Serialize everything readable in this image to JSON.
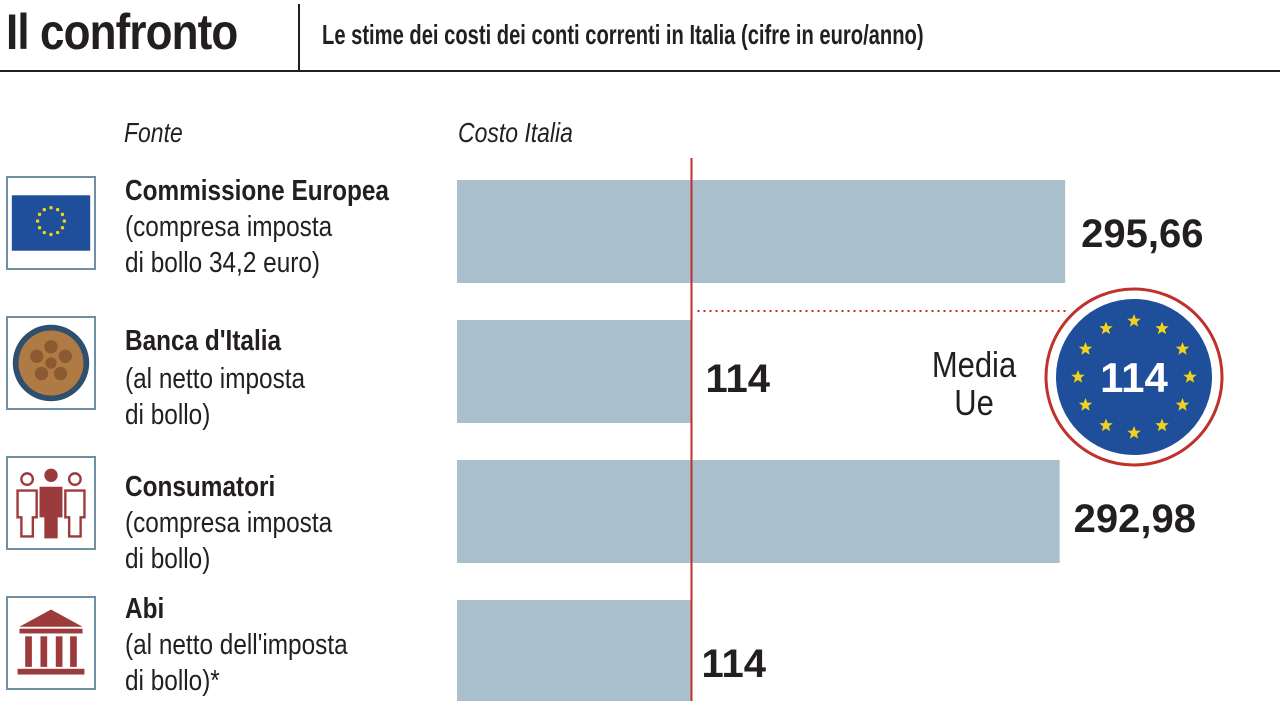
{
  "header": {
    "title": "Il confronto",
    "subtitle": "Le stime dei costi dei conti correnti in Italia (cifre in euro/anno)"
  },
  "columns": {
    "source": "Fonte",
    "cost": "Costo Italia"
  },
  "sources": [
    {
      "name": "Commissione Europea",
      "note_lines": [
        "(compresa imposta",
        "di bollo 34,2 euro)"
      ],
      "icon": "eu-flag-icon"
    },
    {
      "name": "Banca d'Italia",
      "note_lines": [
        "(al netto imposta",
        "di bollo)"
      ],
      "icon": "bank-of-italy-seal-icon"
    },
    {
      "name": "Consumatori",
      "note_lines": [
        "(compresa imposta",
        "di bollo)"
      ],
      "icon": "consumers-people-icon"
    },
    {
      "name": "Abi",
      "note_lines": [
        "(al netto dell'imposta",
        "di bollo)*"
      ],
      "icon": "bank-building-icon"
    }
  ],
  "eu_average": {
    "label_lines": [
      "Media",
      "Ue"
    ],
    "value": "114"
  },
  "colors": {
    "bar": "#a9bfcc",
    "reference_line": "#c0312b",
    "eu_blue": "#1f4e9a",
    "eu_star": "#f2d31b",
    "icon_border": "#6f8fa3",
    "bank_seal": "#b07a45",
    "consumers": "#9c3b3b"
  },
  "chart_data": {
    "type": "bar",
    "orientation": "horizontal",
    "categories": [
      "Commissione Europea",
      "Banca d'Italia",
      "Consumatori",
      "Abi"
    ],
    "values": [
      295.66,
      114,
      292.98,
      114
    ],
    "value_labels": [
      "295,66",
      "114",
      "292,98",
      "114"
    ],
    "reference_value": 114,
    "xlim": [
      0,
      300
    ]
  }
}
